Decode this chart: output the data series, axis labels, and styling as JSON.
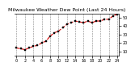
{
  "title": "Milwaukee Weather Dew Point (Last 24 Hours)",
  "background_color": "#ffffff",
  "plot_bg_color": "#ffffff",
  "line_color": "#dd0000",
  "marker_color": "#000000",
  "grid_color": "#888888",
  "x_values": [
    0,
    1,
    2,
    3,
    4,
    5,
    6,
    7,
    8,
    9,
    10,
    11,
    12,
    13,
    14,
    15,
    16,
    17,
    18,
    19,
    20,
    21,
    22,
    23,
    24
  ],
  "y_values": [
    14,
    13,
    12,
    14,
    16,
    17,
    20,
    22,
    28,
    32,
    34,
    38,
    42,
    44,
    46,
    45,
    44,
    46,
    44,
    46,
    46,
    48,
    48,
    52,
    54
  ],
  "ylim": [
    5,
    55
  ],
  "xlim": [
    -0.5,
    24.5
  ],
  "yticks": [
    10,
    20,
    30,
    40,
    50
  ],
  "xticks": [
    0,
    2,
    4,
    6,
    8,
    10,
    12,
    14,
    16,
    18,
    20,
    22,
    24
  ],
  "xtick_labels": [
    "0",
    "2",
    "4",
    "6",
    "8",
    "10",
    "12",
    "14",
    "16",
    "18",
    "20",
    "22",
    "24"
  ],
  "title_fontsize": 4.5,
  "tick_fontsize": 3.5,
  "line_width": 0.8,
  "marker_size": 1.8
}
